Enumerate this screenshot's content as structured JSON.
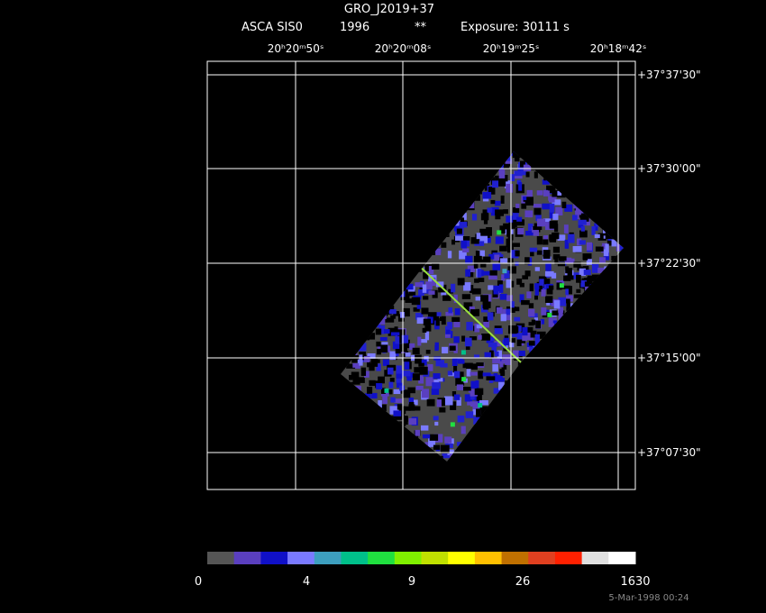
{
  "header": {
    "title": "GRO_J2019+37",
    "instrument": "ASCA SIS0",
    "year": "1996",
    "flag": "**",
    "exposure": "Exposure: 30111 s"
  },
  "ra_labels": [
    "20ʰ20ᵐ50ˢ",
    "20ʰ20ᵐ08ˢ",
    "20ʰ19ᵐ25ˢ",
    "20ʰ18ᵐ42ˢ"
  ],
  "dec_labels": [
    "+37°37'30\"",
    "+37°30'00\"",
    "+37°22'30\"",
    "+37°15'00\"",
    "+37°07'30\""
  ],
  "colorbar": {
    "colors": [
      "#555555",
      "#5a3fbf",
      "#1010c8",
      "#7a7aff",
      "#3d9fbf",
      "#00c08a",
      "#20e040",
      "#80f000",
      "#c0e000",
      "#ffff00",
      "#ffc000",
      "#c07000",
      "#e04020",
      "#ff2000",
      "#e0e0e0",
      "#ffffff"
    ],
    "labels": [
      "0",
      "4",
      "9",
      "26",
      "1630"
    ]
  },
  "footer": "5-Mar-1998 00:24"
}
